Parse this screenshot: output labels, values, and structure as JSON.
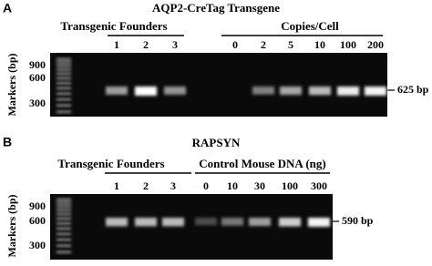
{
  "panel_a": {
    "label": "A",
    "title": "AQP2-CreTag Transgene",
    "groups": [
      "Transgenic Founders",
      "Copies/Cell"
    ],
    "lanes": [
      "1",
      "2",
      "3",
      "0",
      "2",
      "5",
      "10",
      "100",
      "200"
    ],
    "y_axis_label": "Markers (bp)",
    "marker_ticks": [
      "900",
      "600",
      "300"
    ],
    "band_label": "625 bp"
  },
  "panel_b": {
    "label": "B",
    "title": "RAPSYN",
    "groups": [
      "Transgenic Founders",
      "Control Mouse DNA (ng)"
    ],
    "lanes": [
      "1",
      "2",
      "3",
      "0",
      "10",
      "30",
      "100",
      "300"
    ],
    "y_axis_label": "Markers (bp)",
    "marker_ticks": [
      "900",
      "600",
      "300"
    ],
    "band_label": "590 bp"
  }
}
